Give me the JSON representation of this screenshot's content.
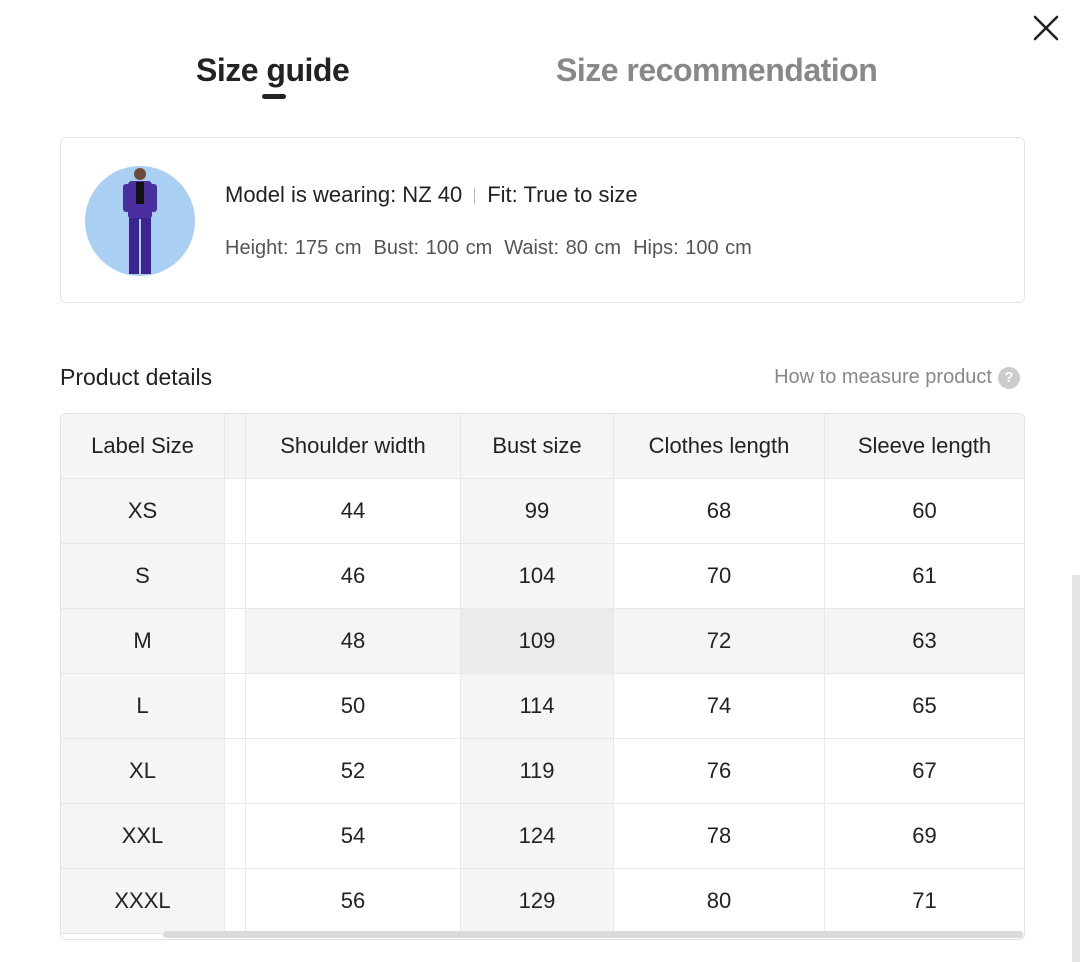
{
  "tabs": [
    {
      "label": "Size guide",
      "active": true
    },
    {
      "label": "Size recommendation",
      "active": false
    }
  ],
  "model": {
    "wearing": "Model is wearing: NZ 40",
    "fit": "Fit: True to size",
    "measurements": [
      "Height: 175 cm",
      "Bust: 100 cm",
      "Waist: 80 cm",
      "Hips: 100 cm"
    ]
  },
  "section_title": "Product details",
  "how_to_measure": "How to measure product",
  "help_icon": "?",
  "table": {
    "headers": [
      "Label Size",
      "Shoulder width",
      "Bust size",
      "Clothes length",
      "Sleeve length"
    ],
    "rows": [
      [
        "XS",
        "44",
        "99",
        "68",
        "60"
      ],
      [
        "S",
        "46",
        "104",
        "70",
        "61"
      ],
      [
        "M",
        "48",
        "109",
        "72",
        "63"
      ],
      [
        "L",
        "50",
        "114",
        "74",
        "65"
      ],
      [
        "XL",
        "52",
        "119",
        "76",
        "67"
      ],
      [
        "XXL",
        "54",
        "124",
        "78",
        "69"
      ],
      [
        "XXXL",
        "56",
        "129",
        "80",
        "71"
      ]
    ]
  }
}
